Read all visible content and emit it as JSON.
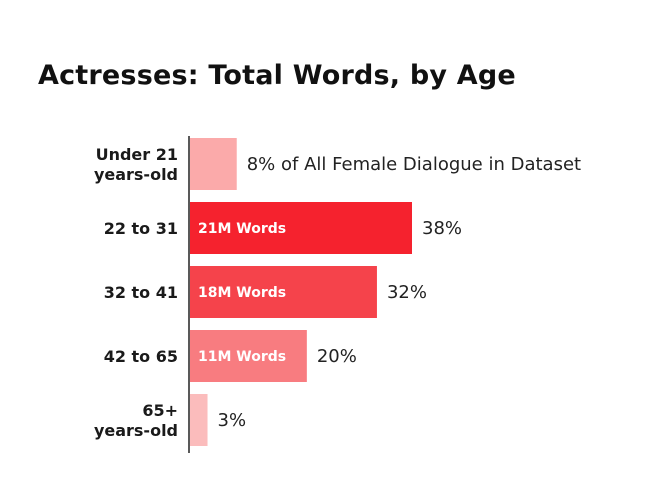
{
  "chart_data": {
    "type": "bar",
    "orientation": "horizontal",
    "title": "Actresses: Total Words, by Age",
    "categories": [
      [
        "Under 21",
        "years-old"
      ],
      [
        "22 to 31"
      ],
      [
        "32 to 41"
      ],
      [
        "42 to 65"
      ],
      [
        "65+",
        "years-old"
      ]
    ],
    "values": [
      8,
      38,
      32,
      20,
      3
    ],
    "value_labels": [
      "8% of All Female Dialogue in Dataset",
      "38%",
      "32%",
      "20%",
      "3%"
    ],
    "inside_labels": [
      "",
      "21M Words",
      "18M Words",
      "11M Words",
      ""
    ],
    "colors": [
      "#fbaaaa",
      "#f5222e",
      "#f5434b",
      "#f87c80",
      "#fbbcbc"
    ],
    "unit": "%",
    "xlim": [
      0,
      38
    ],
    "grid": false,
    "legend": "none"
  }
}
